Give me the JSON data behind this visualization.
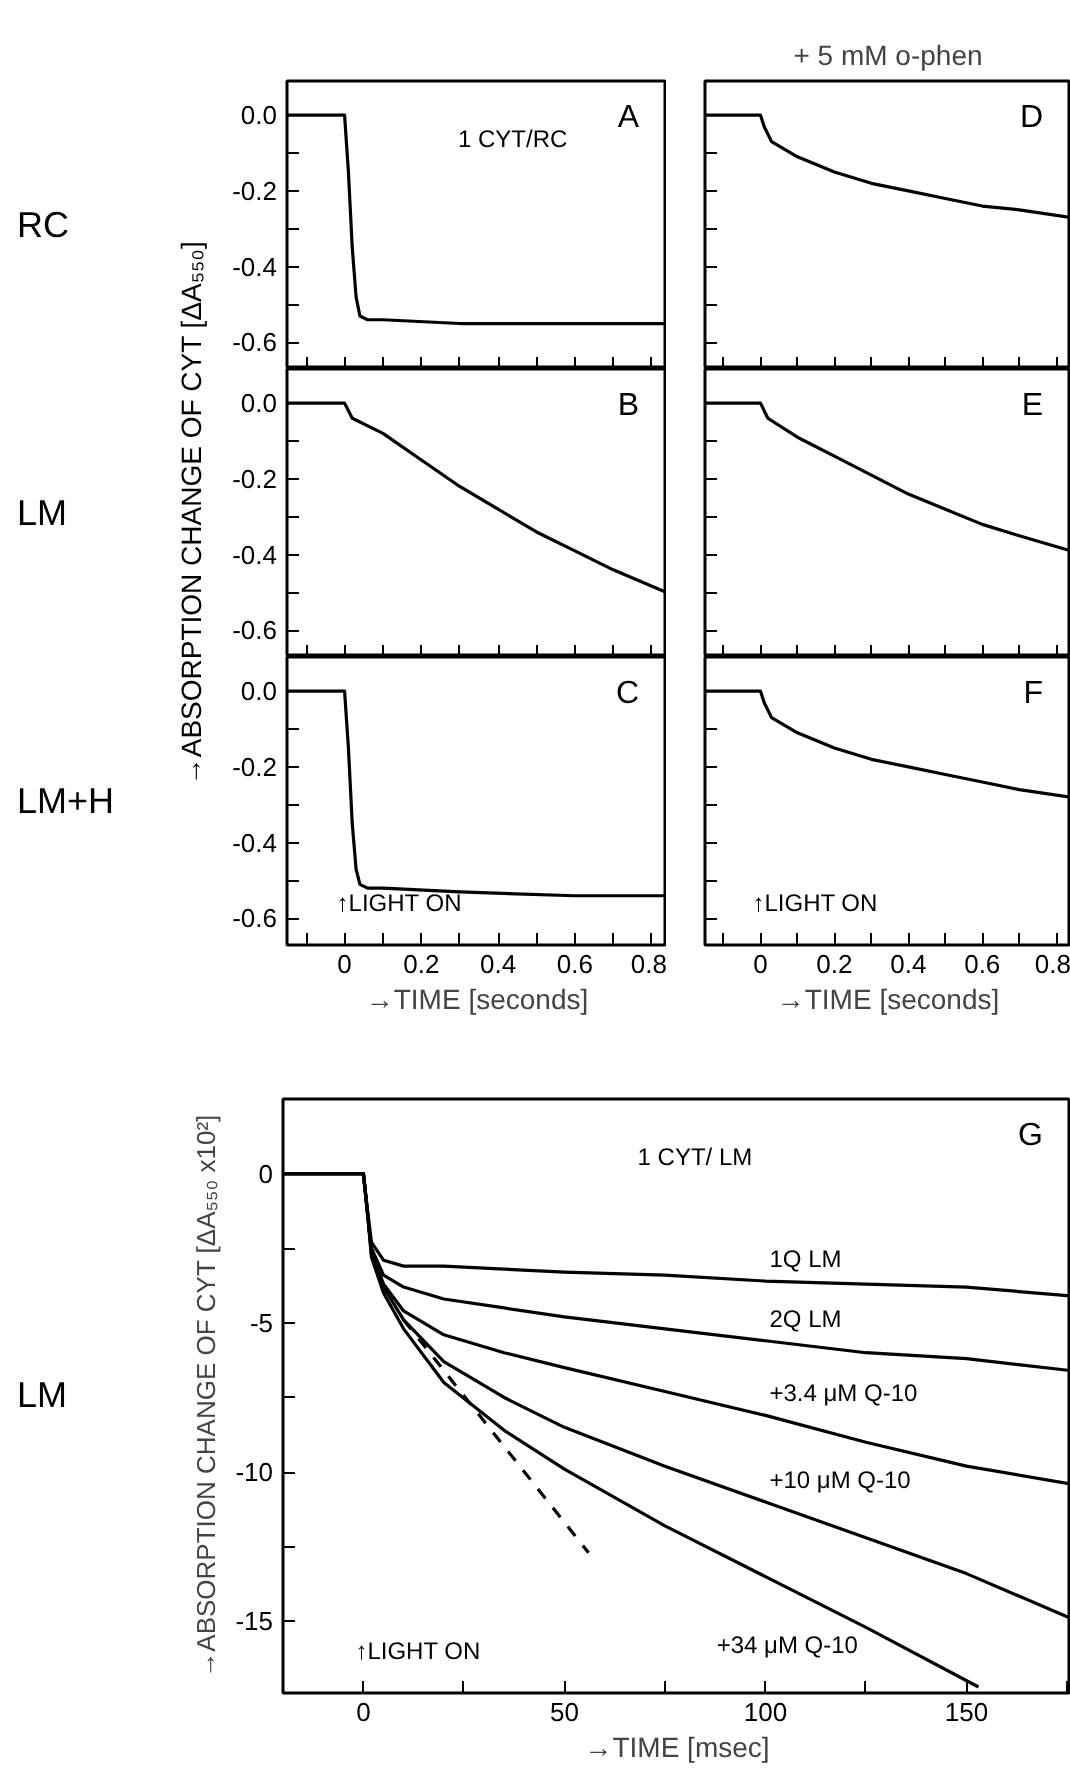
{
  "chart_data": [
    {
      "type": "line",
      "xlim": [
        -0.15,
        0.84
      ],
      "ylim": [
        -0.67,
        0.09
      ],
      "tick_labels": "y",
      "xticks": [
        {
          "value": -0.1,
          "label": null
        },
        0,
        {
          "value": 0.1,
          "label": null
        },
        0.2,
        {
          "value": 0.3,
          "label": null
        },
        0.4,
        {
          "value": 0.5,
          "label": null
        },
        0.6,
        {
          "value": 0.7,
          "label": null
        },
        0.8
      ],
      "yticks": [
        {
          "value": 0,
          "label": "0.0"
        },
        {
          "value": -0.1,
          "label": null
        },
        -0.2,
        {
          "value": -0.3,
          "label": null
        },
        -0.4,
        {
          "value": -0.5,
          "label": null
        },
        -0.6
      ],
      "annotations": [
        "A",
        "RC",
        "1 CYT/RC"
      ],
      "series": [
        {
          "color": "#000000",
          "x": [
            -0.15,
            0,
            0.01,
            0.02,
            0.03,
            0.04,
            0.06,
            0.1,
            0.3,
            0.6,
            0.84
          ],
          "values": [
            0,
            0,
            -0.15,
            -0.35,
            -0.48,
            -0.53,
            -0.54,
            -0.54,
            -0.55,
            -0.55,
            -0.55
          ]
        }
      ]
    },
    {
      "type": "line",
      "xlim": [
        -0.15,
        0.84
      ],
      "ylim": [
        -0.67,
        0.09
      ],
      "tick_labels": "y",
      "ylabel": "→ABSORPTION CHANGE OF CYT [ΔA₅₅₀]",
      "xticks": [
        {
          "value": -0.1,
          "label": null
        },
        0,
        {
          "value": 0.1,
          "label": null
        },
        0.2,
        {
          "value": 0.3,
          "label": null
        },
        0.4,
        {
          "value": 0.5,
          "label": null
        },
        0.6,
        {
          "value": 0.7,
          "label": null
        },
        0.8
      ],
      "yticks": [
        {
          "value": 0,
          "label": "0.0"
        },
        {
          "value": -0.1,
          "label": null
        },
        -0.2,
        {
          "value": -0.3,
          "label": null
        },
        -0.4,
        {
          "value": -0.5,
          "label": null
        },
        -0.6
      ],
      "annotations": [
        "B",
        "LM"
      ],
      "series": [
        {
          "color": "#000000",
          "x": [
            -0.15,
            0,
            0.02,
            0.1,
            0.2,
            0.3,
            0.4,
            0.5,
            0.6,
            0.7,
            0.84
          ],
          "values": [
            0,
            0,
            -0.04,
            -0.08,
            -0.15,
            -0.22,
            -0.28,
            -0.34,
            -0.39,
            -0.44,
            -0.5
          ]
        }
      ]
    },
    {
      "type": "line",
      "xlim": [
        -0.15,
        0.84
      ],
      "ylim": [
        -0.67,
        0.09
      ],
      "xlabel": "→TIME [seconds]",
      "xticks": [
        {
          "value": -0.1,
          "label": null
        },
        0,
        {
          "value": 0.1,
          "label": null
        },
        0.2,
        {
          "value": 0.3,
          "label": null
        },
        0.4,
        {
          "value": 0.5,
          "label": null
        },
        0.6,
        {
          "value": 0.7,
          "label": null
        },
        0.8
      ],
      "yticks": [
        {
          "value": 0,
          "label": "0.0"
        },
        {
          "value": -0.1,
          "label": null
        },
        -0.2,
        {
          "value": -0.3,
          "label": null
        },
        -0.4,
        {
          "value": -0.5,
          "label": null
        },
        -0.6
      ],
      "annotations": [
        "C",
        "LM+H",
        "↑LIGHT ON"
      ],
      "series": [
        {
          "color": "#000000",
          "x": [
            -0.15,
            0,
            0.01,
            0.02,
            0.03,
            0.04,
            0.06,
            0.1,
            0.3,
            0.6,
            0.84
          ],
          "values": [
            0,
            0,
            -0.15,
            -0.35,
            -0.47,
            -0.51,
            -0.52,
            -0.52,
            -0.53,
            -0.54,
            -0.54
          ]
        }
      ]
    },
    {
      "type": "line",
      "xlim": [
        -0.15,
        0.84
      ],
      "ylim": [
        -0.67,
        0.09
      ],
      "tick_labels": false,
      "title": "+ 5 mM o-phen",
      "xticks": [
        {
          "value": -0.1,
          "label": null
        },
        {
          "value": 0,
          "label": null
        },
        {
          "value": 0.1,
          "label": null
        },
        {
          "value": 0.2,
          "label": null
        },
        {
          "value": 0.3,
          "label": null
        },
        {
          "value": 0.4,
          "label": null
        },
        {
          "value": 0.5,
          "label": null
        },
        {
          "value": 0.6,
          "label": null
        },
        {
          "value": 0.7,
          "label": null
        },
        {
          "value": 0.8,
          "label": null
        }
      ],
      "yticks": [
        {
          "value": 0,
          "label": null
        },
        {
          "value": -0.1,
          "label": null
        },
        {
          "value": -0.2,
          "label": null
        },
        {
          "value": -0.3,
          "label": null
        },
        {
          "value": -0.4,
          "label": null
        },
        {
          "value": -0.5,
          "label": null
        },
        {
          "value": -0.6,
          "label": null
        }
      ],
      "annotations": [
        "D"
      ],
      "series": [
        {
          "color": "#000000",
          "x": [
            -0.15,
            0,
            0.01,
            0.03,
            0.1,
            0.2,
            0.3,
            0.4,
            0.5,
            0.6,
            0.7,
            0.84
          ],
          "values": [
            0,
            0,
            -0.03,
            -0.07,
            -0.11,
            -0.15,
            -0.18,
            -0.2,
            -0.22,
            -0.24,
            -0.25,
            -0.27
          ]
        }
      ]
    },
    {
      "type": "line",
      "xlim": [
        -0.15,
        0.84
      ],
      "ylim": [
        -0.67,
        0.09
      ],
      "tick_labels": false,
      "xticks": [
        {
          "value": -0.1,
          "label": null
        },
        {
          "value": 0,
          "label": null
        },
        {
          "value": 0.1,
          "label": null
        },
        {
          "value": 0.2,
          "label": null
        },
        {
          "value": 0.3,
          "label": null
        },
        {
          "value": 0.4,
          "label": null
        },
        {
          "value": 0.5,
          "label": null
        },
        {
          "value": 0.6,
          "label": null
        },
        {
          "value": 0.7,
          "label": null
        },
        {
          "value": 0.8,
          "label": null
        }
      ],
      "yticks": [
        {
          "value": 0,
          "label": null
        },
        {
          "value": -0.1,
          "label": null
        },
        {
          "value": -0.2,
          "label": null
        },
        {
          "value": -0.3,
          "label": null
        },
        {
          "value": -0.4,
          "label": null
        },
        {
          "value": -0.5,
          "label": null
        },
        {
          "value": -0.6,
          "label": null
        }
      ],
      "annotations": [
        "E"
      ],
      "series": [
        {
          "color": "#000000",
          "x": [
            -0.15,
            0,
            0.02,
            0.1,
            0.2,
            0.3,
            0.4,
            0.5,
            0.6,
            0.7,
            0.84
          ],
          "values": [
            0,
            0,
            -0.04,
            -0.09,
            -0.14,
            -0.19,
            -0.24,
            -0.28,
            -0.32,
            -0.35,
            -0.39
          ]
        }
      ]
    },
    {
      "type": "line",
      "xlim": [
        -0.15,
        0.84
      ],
      "ylim": [
        -0.67,
        0.09
      ],
      "tick_labels": "x",
      "xlabel": "→TIME [seconds]",
      "xticks": [
        {
          "value": -0.1,
          "label": null
        },
        0,
        {
          "value": 0.1,
          "label": null
        },
        0.2,
        {
          "value": 0.3,
          "label": null
        },
        0.4,
        {
          "value": 0.5,
          "label": null
        },
        0.6,
        {
          "value": 0.7,
          "label": null
        },
        0.8
      ],
      "yticks": [
        {
          "value": 0,
          "label": null
        },
        {
          "value": -0.1,
          "label": null
        },
        {
          "value": -0.2,
          "label": null
        },
        {
          "value": -0.3,
          "label": null
        },
        {
          "value": -0.4,
          "label": null
        },
        {
          "value": -0.5,
          "label": null
        },
        {
          "value": -0.6,
          "label": null
        }
      ],
      "annotations": [
        "F",
        "↑LIGHT ON"
      ],
      "series": [
        {
          "color": "#000000",
          "x": [
            -0.15,
            0,
            0.01,
            0.03,
            0.1,
            0.2,
            0.3,
            0.4,
            0.5,
            0.6,
            0.7,
            0.84
          ],
          "values": [
            0,
            0,
            -0.03,
            -0.07,
            -0.11,
            -0.15,
            -0.18,
            -0.2,
            -0.22,
            -0.24,
            -0.26,
            -0.28
          ]
        }
      ]
    },
    {
      "type": "line",
      "xlim": [
        -20,
        176
      ],
      "ylim": [
        -17.4,
        2.5
      ],
      "xlabel": "→TIME [msec]",
      "ylabel": "→ABSORPTION CHANGE OF CYT [ΔA₅₅₀ x10²]",
      "xticks": [
        0,
        {
          "value": 25,
          "label": null
        },
        50,
        {
          "value": 75,
          "label": null
        },
        100,
        {
          "value": 125,
          "label": null
        },
        150,
        {
          "value": 175,
          "label": null
        }
      ],
      "yticks": [
        0,
        {
          "value": -2.5,
          "label": null
        },
        -5,
        {
          "value": -7.5,
          "label": null
        },
        -10,
        {
          "value": -12.5,
          "label": null
        },
        -15
      ],
      "annotations": [
        "G",
        "LM",
        "1 CYT/ LM",
        "↑LIGHT ON"
      ],
      "series": [
        {
          "name": "1Q LM",
          "color": "#000000",
          "x": [
            -20,
            -10,
            -0.5,
            0,
            1,
            2,
            5,
            10,
            20,
            35,
            50,
            75,
            100,
            125,
            150,
            176
          ],
          "values": [
            0,
            0,
            0,
            0,
            -1.2,
            -2.3,
            -2.9,
            -3.1,
            -3.1,
            -3.2,
            -3.3,
            -3.4,
            -3.6,
            -3.7,
            -3.8,
            -4.1
          ]
        },
        {
          "name": "2Q LM",
          "color": "#000000",
          "x": [
            -20,
            -10,
            -0.5,
            0,
            1,
            2,
            5,
            10,
            20,
            35,
            50,
            75,
            100,
            125,
            150,
            176
          ],
          "values": [
            0,
            0,
            0,
            0,
            -1.3,
            -2.5,
            -3.4,
            -3.8,
            -4.2,
            -4.5,
            -4.8,
            -5.2,
            -5.6,
            -6.0,
            -6.2,
            -6.6
          ]
        },
        {
          "name": "+3.4 μM Q-10",
          "color": "#000000",
          "x": [
            -20,
            -10,
            -0.5,
            0,
            1,
            2,
            5,
            10,
            20,
            35,
            50,
            75,
            100,
            125,
            150,
            176
          ],
          "values": [
            0,
            0,
            0,
            0,
            -1.3,
            -2.6,
            -3.7,
            -4.6,
            -5.4,
            -6.0,
            -6.5,
            -7.3,
            -8.1,
            -9.0,
            -9.8,
            -10.4
          ]
        },
        {
          "name": "+10 μM Q-10",
          "color": "#000000",
          "x": [
            -20,
            -10,
            -0.5,
            0,
            1,
            2,
            5,
            10,
            20,
            35,
            50,
            75,
            100,
            125,
            150,
            176
          ],
          "values": [
            0,
            0,
            0,
            0,
            -1.3,
            -2.7,
            -3.8,
            -4.9,
            -6.3,
            -7.5,
            -8.5,
            -9.8,
            -11.0,
            -12.2,
            -13.4,
            -14.9
          ]
        },
        {
          "name": "+34 μM Q-10",
          "color": "#000000",
          "x": [
            -20,
            -10,
            -0.5,
            0,
            1,
            2,
            5,
            10,
            20,
            35,
            50,
            75,
            100,
            125,
            153
          ],
          "values": [
            0,
            0,
            0,
            0,
            -1.3,
            -2.8,
            -4.0,
            -5.2,
            -7.0,
            -8.6,
            -9.9,
            -11.8,
            -13.5,
            -15.2,
            -17.2
          ]
        },
        {
          "color": "#000000",
          "line_style": "dashed",
          "x": [
            10,
            56
          ],
          "values": [
            -4.9,
            -12.7
          ]
        }
      ]
    }
  ]
}
